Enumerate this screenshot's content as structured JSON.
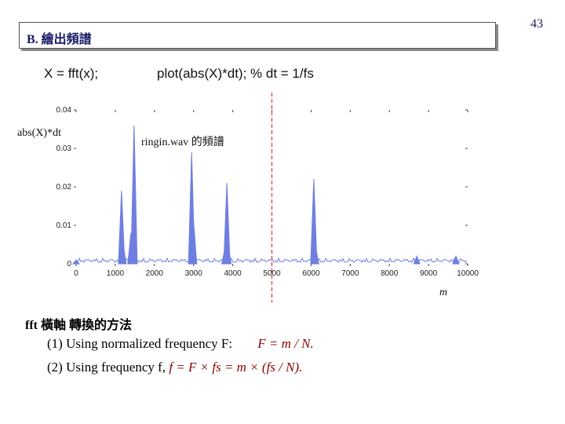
{
  "page_number": "43",
  "section_title": "B.  繪出頻譜",
  "code": {
    "fft": "X = fft(x);",
    "plot": "plot(abs(X)*dt);   % dt = 1/fs"
  },
  "annotations": {
    "y_name": "abs(X)*dt",
    "plot_label": "ringin.wav 的頻譜",
    "m_label": "m"
  },
  "methods": {
    "title": "fft 橫軸 轉換的方法",
    "m1_text": "(1) Using normalized frequency F: ",
    "m1_formula": "F = m / N.",
    "m2_text": "(2) Using frequency f,  ",
    "m2_formula": "f = F × fs = m × (fs / N)."
  },
  "colors": {
    "spectrum": "#6f7fe0",
    "marker": "#cc2222",
    "accent_text": "#1a1a66"
  },
  "chart_data": {
    "type": "line",
    "title": "",
    "xlabel": "m",
    "ylabel": "abs(X)*dt",
    "xlim": [
      0,
      10000
    ],
    "ylim": [
      0,
      0.04
    ],
    "xticks": [
      0,
      1000,
      2000,
      3000,
      4000,
      5000,
      6000,
      7000,
      8000,
      9000,
      10000
    ],
    "yticks": [
      0,
      0.01,
      0.02,
      0.03,
      0.04
    ],
    "xtick_labels": [
      "0",
      "1000",
      "2000",
      "3000",
      "4000",
      "5000",
      "6000",
      "7000",
      "8000",
      "9000",
      "10000"
    ],
    "ytick_labels": [
      "0",
      "0.01",
      "0.02",
      "0.03",
      "0.04"
    ],
    "grid": false,
    "reference_line_x": 5000,
    "peaks": [
      {
        "x": 0,
        "y": 0.001
      },
      {
        "x": 1160,
        "y": 0.019
      },
      {
        "x": 1200,
        "y": 0.005
      },
      {
        "x": 1400,
        "y": 0.008
      },
      {
        "x": 1480,
        "y": 0.036
      },
      {
        "x": 2950,
        "y": 0.029
      },
      {
        "x": 3000,
        "y": 0.011
      },
      {
        "x": 3800,
        "y": 0.004
      },
      {
        "x": 3850,
        "y": 0.021
      },
      {
        "x": 3880,
        "y": 0.005
      },
      {
        "x": 6070,
        "y": 0.022
      },
      {
        "x": 6120,
        "y": 0.004
      },
      {
        "x": 8700,
        "y": 0.002
      },
      {
        "x": 9700,
        "y": 0.002
      }
    ]
  }
}
